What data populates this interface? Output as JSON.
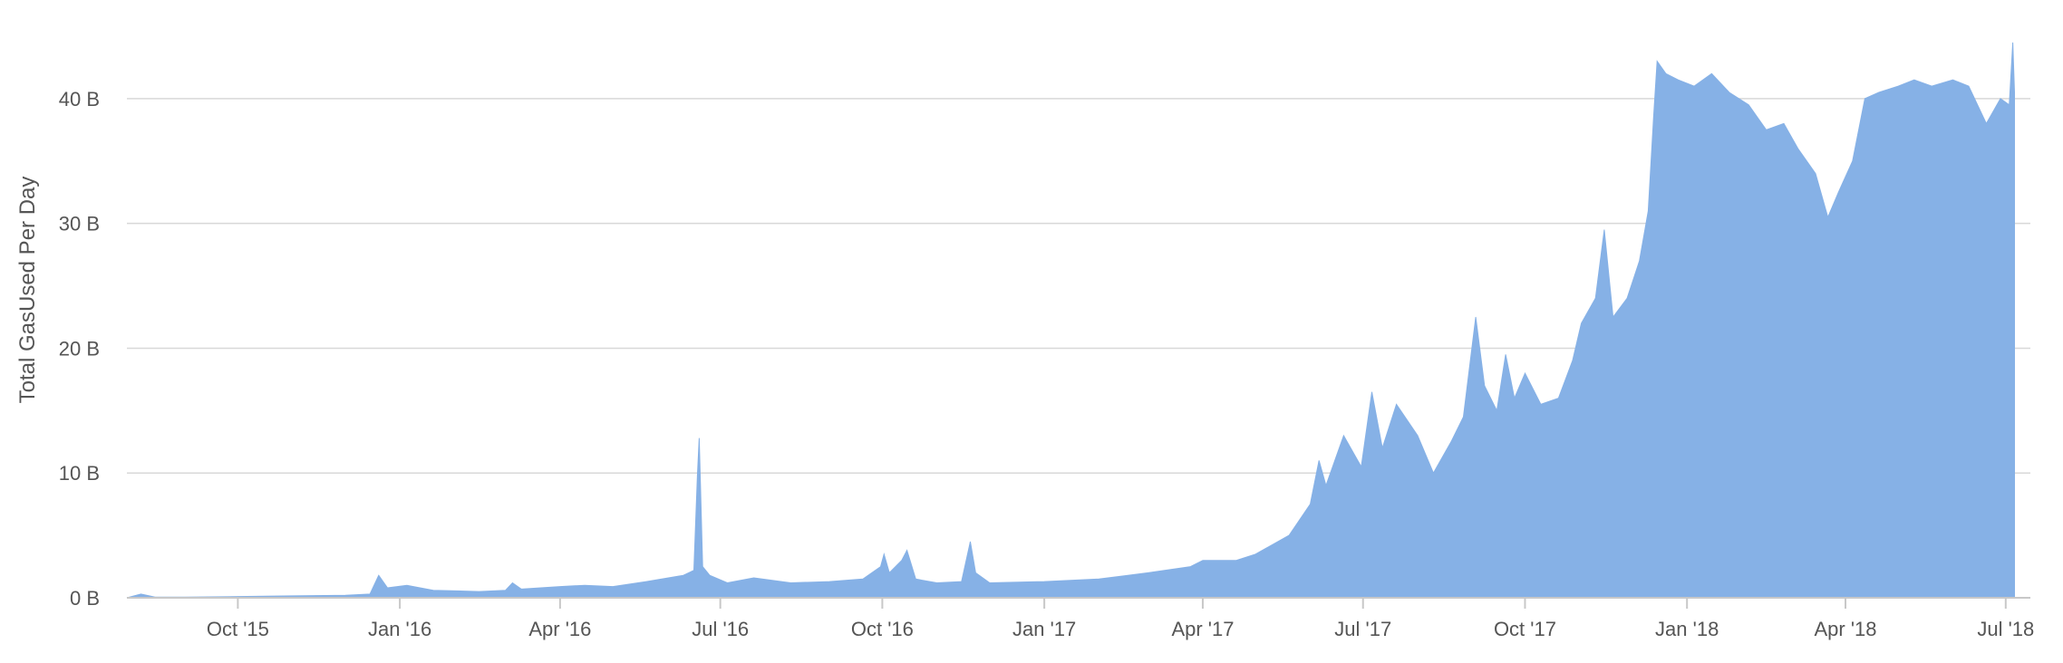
{
  "chart_data": {
    "type": "area",
    "title": "",
    "xlabel": "",
    "ylabel": "Total GasUsed Per Day",
    "colors": {
      "series": "#86b1e6",
      "grid": "#d8d8d8",
      "text": "#555555"
    },
    "grid": true,
    "legend": "none",
    "xlim": [
      "2015-07-30",
      "2018-07-15"
    ],
    "ylim": [
      0,
      45
    ],
    "y_unit": "B",
    "y_ticks": [
      {
        "value": 0,
        "label": "0 B"
      },
      {
        "value": 10,
        "label": "10 B"
      },
      {
        "value": 20,
        "label": "20 B"
      },
      {
        "value": 30,
        "label": "30 B"
      },
      {
        "value": 40,
        "label": "40 B"
      }
    ],
    "x_ticks": [
      {
        "date": "2015-10-01",
        "label": "Oct '15"
      },
      {
        "date": "2016-01-01",
        "label": "Jan '16"
      },
      {
        "date": "2016-04-01",
        "label": "Apr '16"
      },
      {
        "date": "2016-07-01",
        "label": "Jul '16"
      },
      {
        "date": "2016-10-01",
        "label": "Oct '16"
      },
      {
        "date": "2017-01-01",
        "label": "Jan '17"
      },
      {
        "date": "2017-04-01",
        "label": "Apr '17"
      },
      {
        "date": "2017-07-01",
        "label": "Jul '17"
      },
      {
        "date": "2017-10-01",
        "label": "Oct '17"
      },
      {
        "date": "2018-01-01",
        "label": "Jan '18"
      },
      {
        "date": "2018-04-01",
        "label": "Apr '18"
      },
      {
        "date": "2018-07-01",
        "label": "Jul '18"
      }
    ],
    "series": [
      {
        "points": [
          [
            "2015-07-30",
            0.0
          ],
          [
            "2015-08-07",
            0.3
          ],
          [
            "2015-08-15",
            0.05
          ],
          [
            "2015-09-01",
            0.05
          ],
          [
            "2015-10-01",
            0.1
          ],
          [
            "2015-11-01",
            0.15
          ],
          [
            "2015-12-01",
            0.2
          ],
          [
            "2015-12-15",
            0.3
          ],
          [
            "2015-12-20",
            1.8
          ],
          [
            "2015-12-25",
            0.8
          ],
          [
            "2016-01-05",
            1.0
          ],
          [
            "2016-01-20",
            0.6
          ],
          [
            "2016-02-15",
            0.5
          ],
          [
            "2016-03-01",
            0.6
          ],
          [
            "2016-03-05",
            1.2
          ],
          [
            "2016-03-10",
            0.7
          ],
          [
            "2016-04-01",
            0.9
          ],
          [
            "2016-04-15",
            1.0
          ],
          [
            "2016-05-01",
            0.9
          ],
          [
            "2016-05-20",
            1.3
          ],
          [
            "2016-06-10",
            1.8
          ],
          [
            "2016-06-16",
            2.2
          ],
          [
            "2016-06-18",
            9.8
          ],
          [
            "2016-06-19",
            12.8
          ],
          [
            "2016-06-21",
            2.5
          ],
          [
            "2016-06-25",
            1.8
          ],
          [
            "2016-07-05",
            1.2
          ],
          [
            "2016-07-20",
            1.6
          ],
          [
            "2016-08-10",
            1.2
          ],
          [
            "2016-09-01",
            1.3
          ],
          [
            "2016-09-20",
            1.5
          ],
          [
            "2016-09-30",
            2.5
          ],
          [
            "2016-10-02",
            3.5
          ],
          [
            "2016-10-05",
            2.0
          ],
          [
            "2016-10-12",
            3.0
          ],
          [
            "2016-10-15",
            3.8
          ],
          [
            "2016-10-20",
            1.5
          ],
          [
            "2016-11-01",
            1.2
          ],
          [
            "2016-11-15",
            1.3
          ],
          [
            "2016-11-20",
            4.5
          ],
          [
            "2016-11-23",
            2.0
          ],
          [
            "2016-12-01",
            1.2
          ],
          [
            "2017-01-01",
            1.3
          ],
          [
            "2017-02-01",
            1.5
          ],
          [
            "2017-03-01",
            2.0
          ],
          [
            "2017-03-25",
            2.5
          ],
          [
            "2017-04-01",
            3.0
          ],
          [
            "2017-04-20",
            3.0
          ],
          [
            "2017-05-01",
            3.5
          ],
          [
            "2017-05-20",
            5.0
          ],
          [
            "2017-06-01",
            7.5
          ],
          [
            "2017-06-06",
            11.0
          ],
          [
            "2017-06-10",
            9.0
          ],
          [
            "2017-06-20",
            13.0
          ],
          [
            "2017-06-30",
            10.5
          ],
          [
            "2017-07-06",
            16.5
          ],
          [
            "2017-07-12",
            12.0
          ],
          [
            "2017-07-20",
            15.5
          ],
          [
            "2017-08-01",
            13.0
          ],
          [
            "2017-08-10",
            10.0
          ],
          [
            "2017-08-20",
            12.5
          ],
          [
            "2017-08-27",
            14.5
          ],
          [
            "2017-09-03",
            22.5
          ],
          [
            "2017-09-08",
            17.0
          ],
          [
            "2017-09-15",
            15.0
          ],
          [
            "2017-09-20",
            19.5
          ],
          [
            "2017-09-25",
            16.0
          ],
          [
            "2017-10-01",
            18.0
          ],
          [
            "2017-10-10",
            15.5
          ],
          [
            "2017-10-20",
            16.0
          ],
          [
            "2017-10-28",
            19.0
          ],
          [
            "2017-11-02",
            22.0
          ],
          [
            "2017-11-10",
            24.0
          ],
          [
            "2017-11-15",
            29.5
          ],
          [
            "2017-11-20",
            22.5
          ],
          [
            "2017-11-28",
            24.0
          ],
          [
            "2017-12-05",
            27.0
          ],
          [
            "2017-12-10",
            31.0
          ],
          [
            "2017-12-13",
            38.5
          ],
          [
            "2017-12-15",
            43.0
          ],
          [
            "2017-12-20",
            42.0
          ],
          [
            "2017-12-27",
            41.5
          ],
          [
            "2018-01-05",
            41.0
          ],
          [
            "2018-01-15",
            42.0
          ],
          [
            "2018-01-25",
            40.5
          ],
          [
            "2018-02-05",
            39.5
          ],
          [
            "2018-02-15",
            37.5
          ],
          [
            "2018-02-25",
            38.0
          ],
          [
            "2018-03-05",
            36.0
          ],
          [
            "2018-03-15",
            34.0
          ],
          [
            "2018-03-22",
            30.5
          ],
          [
            "2018-03-28",
            32.5
          ],
          [
            "2018-04-05",
            35.0
          ],
          [
            "2018-04-12",
            40.0
          ],
          [
            "2018-04-20",
            40.5
          ],
          [
            "2018-05-01",
            41.0
          ],
          [
            "2018-05-10",
            41.5
          ],
          [
            "2018-05-20",
            41.0
          ],
          [
            "2018-06-01",
            41.5
          ],
          [
            "2018-06-10",
            41.0
          ],
          [
            "2018-06-20",
            38.0
          ],
          [
            "2018-06-28",
            40.0
          ],
          [
            "2018-07-03",
            39.5
          ],
          [
            "2018-07-05",
            44.5
          ],
          [
            "2018-07-06",
            40.5
          ]
        ]
      }
    ]
  }
}
